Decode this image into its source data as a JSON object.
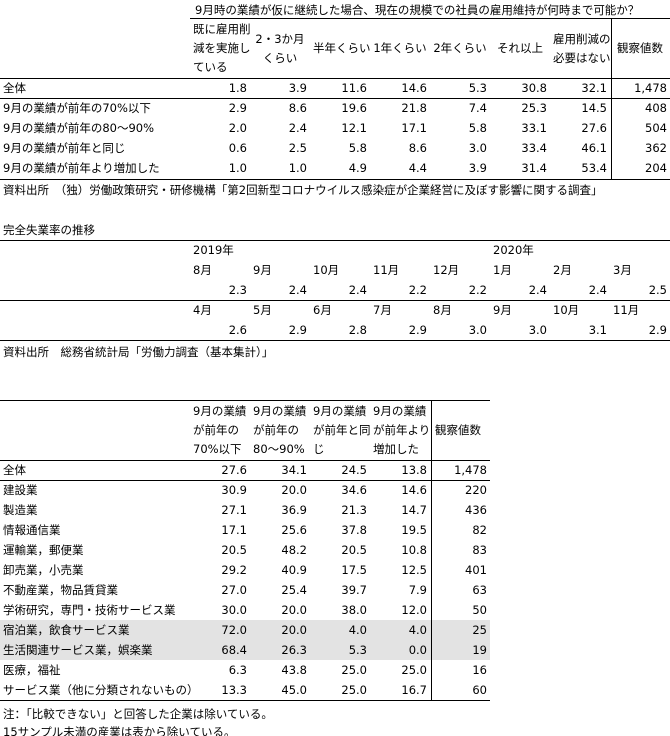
{
  "table1": {
    "title": "9月時の業績が仮に継続した場合、現在の規模での社員の雇用維持が何時まで可能か？",
    "headers": [
      [
        "既に雇用削",
        "減を実施し",
        "ている"
      ],
      [
        "2・3か月",
        "くらい"
      ],
      [
        "半年くらい"
      ],
      [
        "1年くらい"
      ],
      [
        "2年くらい"
      ],
      [
        "それ以上"
      ],
      [
        "雇用削減の",
        "必要はない"
      ],
      [
        "観察値数"
      ]
    ],
    "rows": [
      {
        "label": "全体",
        "cells": [
          "1.8",
          "3.9",
          "11.6",
          "14.6",
          "5.3",
          "30.8",
          "32.1",
          "1,478"
        ]
      },
      {
        "label": "9月の業績が前年の70%以下",
        "cells": [
          "2.9",
          "8.6",
          "19.6",
          "21.8",
          "7.4",
          "25.3",
          "14.5",
          "408"
        ]
      },
      {
        "label": "9月の業績が前年の80～90%",
        "cells": [
          "2.0",
          "2.4",
          "12.1",
          "17.1",
          "5.8",
          "33.1",
          "27.6",
          "504"
        ]
      },
      {
        "label": "9月の業績が前年と同じ",
        "cells": [
          "0.6",
          "2.5",
          "5.8",
          "8.6",
          "3.0",
          "33.4",
          "46.1",
          "362"
        ]
      },
      {
        "label": "9月の業績が前年より増加した",
        "cells": [
          "1.0",
          "1.0",
          "4.9",
          "4.4",
          "3.9",
          "31.4",
          "53.4",
          "204"
        ]
      }
    ],
    "source": "資料出所　（独）労働政策研究・研修機構「第2回新型コロナウイルス感染症が企業経営に及ぼす影響に関する調査」"
  },
  "table2": {
    "title": "完全失業率の推移",
    "blocks": [
      {
        "years": [
          "2019年",
          null,
          null,
          null,
          null,
          "2020年",
          null,
          null
        ],
        "months": [
          "8月",
          "9月",
          "10月",
          "11月",
          "12月",
          "1月",
          "2月",
          "3月"
        ],
        "values": [
          "2.3",
          "2.4",
          "2.4",
          "2.2",
          "2.2",
          "2.4",
          "2.4",
          "2.5"
        ]
      },
      {
        "months": [
          "4月",
          "5月",
          "6月",
          "7月",
          "8月",
          "9月",
          "10月",
          "11月"
        ],
        "values": [
          "2.6",
          "2.9",
          "2.8",
          "2.9",
          "3.0",
          "3.0",
          "3.1",
          "2.9"
        ]
      }
    ],
    "source": "資料出所　総務省統計局「労働力調査（基本集計）」"
  },
  "table3": {
    "headers": [
      [
        "9月の業績",
        "が前年の",
        "70%以下"
      ],
      [
        "9月の業績",
        "が前年の",
        "80～90%"
      ],
      [
        "9月の業績",
        "が前年と同",
        "じ"
      ],
      [
        "9月の業績",
        "が前年より",
        "増加した"
      ],
      [
        "観察値数"
      ]
    ],
    "rows": [
      {
        "label": "全体",
        "cells": [
          "27.6",
          "34.1",
          "24.5",
          "13.8",
          "1,478"
        ]
      },
      {
        "label": "建設業",
        "cells": [
          "30.9",
          "20.0",
          "34.6",
          "14.6",
          "220"
        ]
      },
      {
        "label": "製造業",
        "cells": [
          "27.1",
          "36.9",
          "21.3",
          "14.7",
          "436"
        ]
      },
      {
        "label": "情報通信業",
        "cells": [
          "17.1",
          "25.6",
          "37.8",
          "19.5",
          "82"
        ]
      },
      {
        "label": "運輸業，郵便業",
        "cells": [
          "20.5",
          "48.2",
          "20.5",
          "10.8",
          "83"
        ]
      },
      {
        "label": "卸売業，小売業",
        "cells": [
          "29.2",
          "40.9",
          "17.5",
          "12.5",
          "401"
        ]
      },
      {
        "label": "不動産業，物品賃貸業",
        "cells": [
          "27.0",
          "25.4",
          "39.7",
          "7.9",
          "63"
        ]
      },
      {
        "label": "学術研究，専門・技術サービス業",
        "cells": [
          "30.0",
          "20.0",
          "38.0",
          "12.0",
          "50"
        ]
      },
      {
        "label": "宿泊業，飲食サービス業",
        "cells": [
          "72.0",
          "20.0",
          "4.0",
          "4.0",
          "25"
        ]
      },
      {
        "label": "生活関連サービス業，娯楽業",
        "cells": [
          "68.4",
          "26.3",
          "5.3",
          "0.0",
          "19"
        ]
      },
      {
        "label": "医療，福祉",
        "cells": [
          "6.3",
          "43.8",
          "25.0",
          "25.0",
          "16"
        ]
      },
      {
        "label": "サービス業（他に分類されないもの）",
        "cells": [
          "13.3",
          "45.0",
          "25.0",
          "16.7",
          "60"
        ]
      }
    ],
    "shaded_rows": [
      8,
      9
    ],
    "notes": [
      "注：「比較できない」と回答した企業は除いている。",
      "15サンプル未満の産業は表から除いている。"
    ]
  }
}
